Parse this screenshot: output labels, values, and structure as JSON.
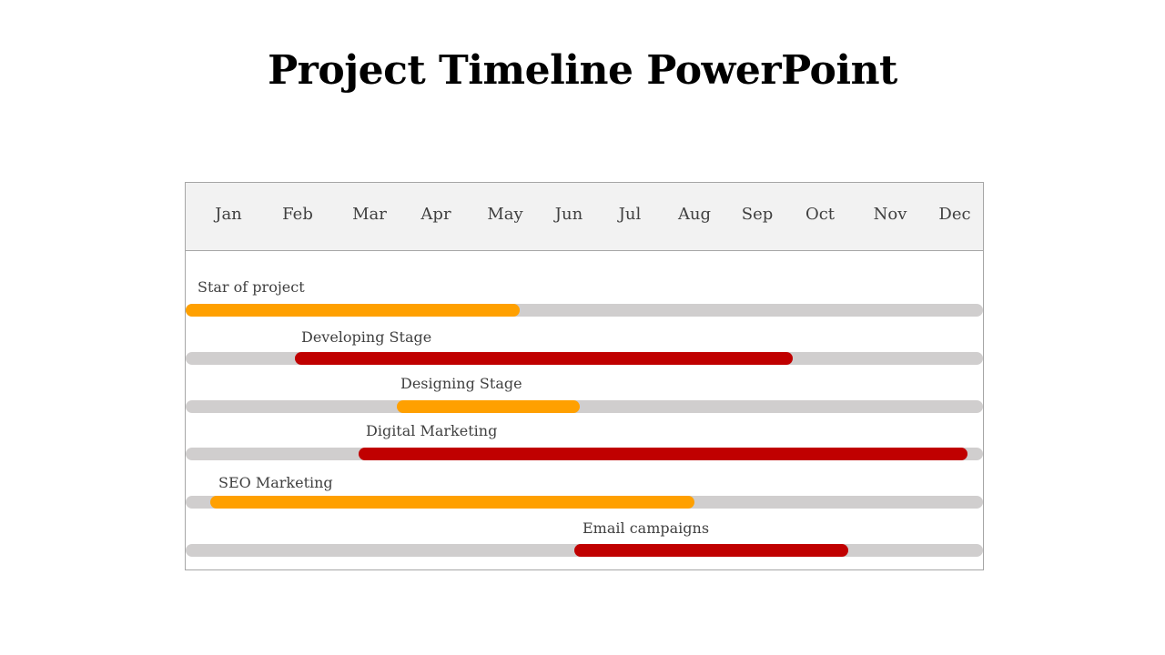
{
  "title": "Project Timeline PowerPoint",
  "colors": {
    "orange": "#ffa000",
    "red": "#c00000",
    "track": "#d0cece",
    "header_bg": "#f2f2f2",
    "border": "#a6a6a6",
    "text": "#404040"
  },
  "chart_data": {
    "type": "gantt",
    "months": [
      "Jan",
      "Feb",
      "Mar",
      "Apr",
      "May",
      "Jun",
      "Jul",
      "Aug",
      "Sep",
      "Oct",
      "Nov",
      "Dec"
    ],
    "tasks": [
      {
        "name": "Star of project",
        "start": "Jan",
        "end": "May",
        "color": "#ffa000"
      },
      {
        "name": "Developing Stage",
        "start": "Feb",
        "end": "Sep",
        "color": "#c00000"
      },
      {
        "name": "Designing Stage",
        "start": "Mar",
        "end": "Jun",
        "color": "#ffa000"
      },
      {
        "name": "Digital Marketing",
        "start": "Mar",
        "end": "Dec",
        "color": "#c00000"
      },
      {
        "name": "SEO Marketing",
        "start": "Jan",
        "end": "Aug",
        "color": "#ffa000"
      },
      {
        "name": "Email campaigns",
        "start": "Jun",
        "end": "Oct",
        "color": "#c00000"
      }
    ]
  }
}
